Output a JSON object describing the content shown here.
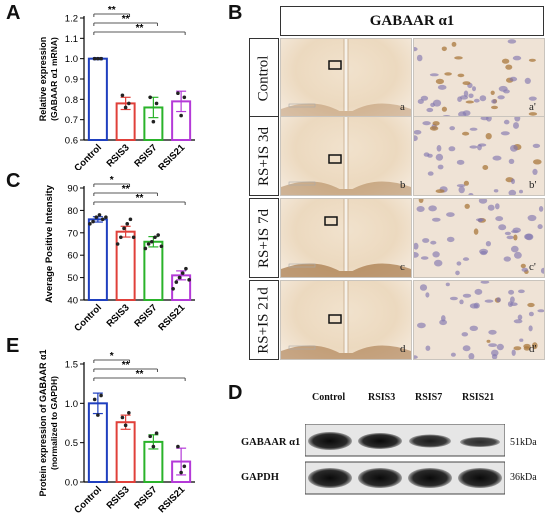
{
  "figure": {
    "letters": {
      "A": "A",
      "B": "B",
      "C": "C",
      "D": "D",
      "E": "E"
    },
    "colors": {
      "Control": "#1f3fbf",
      "RSIS3": "#e0403a",
      "RSIS7": "#2ab32a",
      "RSIS21": "#b43ad8"
    }
  },
  "chart_data": [
    {
      "panel": "A",
      "type": "bar",
      "categories": [
        "Control",
        "RSIS3",
        "RSIS7",
        "RSIS21"
      ],
      "values": [
        1.0,
        0.78,
        0.76,
        0.79
      ],
      "errors": [
        0.005,
        0.03,
        0.05,
        0.05
      ],
      "points": [
        [
          1.0,
          1.0,
          1.0
        ],
        [
          0.82,
          0.76,
          0.78
        ],
        [
          0.81,
          0.69,
          0.78
        ],
        [
          0.83,
          0.72,
          0.81
        ]
      ],
      "ylabel": "Relative expression",
      "ylabel2": "(GABAAR α1 mRNA)",
      "ylim": [
        0.6,
        1.2
      ],
      "yticks": [
        "0.6",
        "0.7",
        "0.8",
        "0.9",
        "1.0",
        "1.1",
        "1.2"
      ],
      "significance": [
        {
          "from": "Control",
          "to": "RSIS3",
          "label": "**"
        },
        {
          "from": "Control",
          "to": "RSIS7",
          "label": "**"
        },
        {
          "from": "Control",
          "to": "RSIS21",
          "label": "**"
        }
      ]
    },
    {
      "panel": "C",
      "type": "bar",
      "categories": [
        "Control",
        "RSIS3",
        "RSIS7",
        "RSIS21"
      ],
      "values": [
        76,
        70.5,
        66,
        51
      ],
      "errors": [
        1.2,
        2.4,
        2.3,
        2.0
      ],
      "points": [
        [
          74,
          75,
          77,
          78,
          76,
          77
        ],
        [
          65,
          68,
          72,
          74,
          76,
          68
        ],
        [
          63,
          65,
          66,
          68,
          69,
          64
        ],
        [
          45,
          48,
          50,
          52,
          54,
          49
        ]
      ],
      "ylabel": "Average Positive Intensity",
      "ylim": [
        40,
        90
      ],
      "yticks": [
        "40",
        "50",
        "60",
        "70",
        "80",
        "90"
      ],
      "significance": [
        {
          "from": "Control",
          "to": "RSIS3",
          "label": "*"
        },
        {
          "from": "Control",
          "to": "RSIS7",
          "label": "**"
        },
        {
          "from": "Control",
          "to": "RSIS21",
          "label": "**"
        }
      ]
    },
    {
      "panel": "E",
      "type": "bar",
      "categories": [
        "Control",
        "RSIS3",
        "RSIS7",
        "RSIS21"
      ],
      "values": [
        1.0,
        0.76,
        0.51,
        0.26
      ],
      "errors": [
        0.13,
        0.09,
        0.09,
        0.17
      ],
      "points": [
        [
          1.05,
          0.85,
          1.1
        ],
        [
          0.82,
          0.72,
          0.88
        ],
        [
          0.58,
          0.45,
          0.62
        ],
        [
          0.45,
          0.12,
          0.2
        ]
      ],
      "ylabel": "Protein expression of GABAAR α1",
      "ylabel2": "(normalized to GAPDH)",
      "ylim": [
        0.0,
        1.5
      ],
      "yticks": [
        "0.0",
        "0.5",
        "1.0",
        "1.5"
      ],
      "significance": [
        {
          "from": "Control",
          "to": "RSIS3",
          "label": "*"
        },
        {
          "from": "Control",
          "to": "RSIS7",
          "label": "**"
        },
        {
          "from": "Control",
          "to": "RSIS21",
          "label": "**"
        }
      ]
    }
  ],
  "histology": {
    "header": "GABAAR α1",
    "rows": [
      {
        "label": "Control",
        "left_tag": "a",
        "right_tag": "a'"
      },
      {
        "label": "RS+IS 3d",
        "left_tag": "b",
        "right_tag": "b'"
      },
      {
        "label": "RS+IS 7d",
        "left_tag": "c",
        "right_tag": "c'"
      },
      {
        "label": "RS+IS 21d",
        "left_tag": "d",
        "right_tag": "d'"
      }
    ]
  },
  "western_blot": {
    "columns": [
      "Control",
      "RSIS3",
      "RSIS7",
      "RSIS21"
    ],
    "rows": [
      {
        "label": "GABAAR α1",
        "size": "51kDa"
      },
      {
        "label": "GAPDH",
        "size": "36kDa"
      }
    ]
  }
}
